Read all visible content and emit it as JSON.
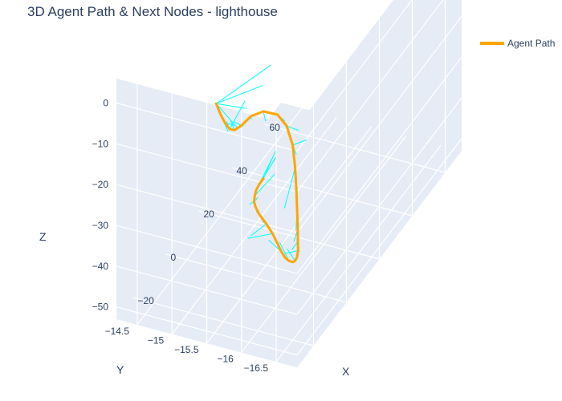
{
  "chart_data": {
    "type": "line3d",
    "title": "3D Agent Path & Next Nodes - lighthouse",
    "legend": {
      "entries": [
        "Agent Path"
      ],
      "position": "top-right"
    },
    "colors": {
      "path": "#ffa500",
      "next_nodes": "#00ffff",
      "pane": "#e5ecf6",
      "grid": "#ffffff",
      "text": "#2a3f5f"
    },
    "axes": {
      "x": {
        "title": "X",
        "ticks": [
          "−20",
          "0",
          "20",
          "40",
          "60"
        ],
        "tick_values": [
          -20,
          0,
          20,
          40,
          60
        ],
        "range": [
          -30,
          70
        ]
      },
      "y": {
        "title": "Y",
        "ticks": [
          "−16.5",
          "−16",
          "−15.5",
          "−15",
          "−14.5"
        ],
        "tick_values": [
          -16.5,
          -16,
          -15.5,
          -15,
          -14.5
        ],
        "range": [
          -16.8,
          -14.2
        ]
      },
      "z": {
        "title": "Z",
        "ticks": [
          "−50",
          "−40",
          "−30",
          "−20",
          "−10",
          "0"
        ],
        "tick_values": [
          -50,
          -40,
          -30,
          -20,
          -10,
          0
        ],
        "range": [
          -53,
          6
        ]
      }
    },
    "series": [
      {
        "name": "Agent Path",
        "x": [
          -20,
          -21.5,
          -23,
          -24.5,
          -25.8,
          -26.6,
          -26.8,
          -26,
          -25,
          -24.5,
          -24.2,
          -24,
          -23.2,
          -21.5,
          -19,
          -16,
          -12.5,
          -9,
          -5,
          -1,
          3,
          7,
          11,
          15,
          18.5,
          21,
          23,
          25,
          27,
          30,
          33,
          36,
          39
        ],
        "y": [
          -15.4,
          -15.5,
          -15.6,
          -15.7,
          -15.8,
          -15.92,
          -16.06,
          -16.22,
          -16.4,
          -16.52,
          -16.6,
          -16.63,
          -16.63,
          -16.6,
          -16.55,
          -16.48,
          -16.4,
          -16.3,
          -16.18,
          -16.05,
          -15.9,
          -15.75,
          -15.6,
          -15.45,
          -15.3,
          -15.15,
          -15,
          -14.9,
          -14.83,
          -14.77,
          -14.72,
          -14.69,
          -14.68
        ],
        "z": [
          0,
          -1.5,
          -2.3,
          -2.5,
          -1.6,
          0.5,
          3.5,
          5,
          4.5,
          2,
          -2.5,
          -8,
          -14,
          -20,
          -26,
          -31,
          -35.5,
          -39.5,
          -43,
          -46,
          -48.5,
          -50.5,
          -51.8,
          -52.6,
          -52.8,
          -52.4,
          -51.8,
          -51.5,
          -51.6,
          -52,
          -52.4,
          -52.8,
          -53
        ]
      }
    ],
    "next_nodes": {
      "name": "Next Nodes",
      "segments_from_path_index": [
        0,
        0,
        0,
        0,
        1,
        2,
        3,
        3,
        4,
        5,
        6,
        7,
        8,
        9,
        10,
        10,
        11,
        11,
        12,
        13,
        14,
        15,
        16,
        18,
        20,
        22,
        24,
        25,
        26,
        27,
        28,
        28,
        29,
        30,
        31,
        32
      ],
      "x": [
        -12,
        -13,
        -14,
        -16,
        -17,
        -17,
        -18,
        6,
        -20,
        -22,
        -24,
        -28,
        -29,
        -25,
        -20,
        -22,
        -23,
        -25,
        -21,
        -18,
        -15,
        -12,
        -8,
        2,
        10,
        16,
        16,
        22,
        30,
        30,
        34,
        39,
        45,
        48,
        50,
        54
      ],
      "y": [
        -16,
        -15.9,
        -15.7,
        -15.6,
        -15.5,
        -15.6,
        -15.5,
        -15.2,
        -15.6,
        -15.7,
        -16,
        -16.3,
        -16.6,
        -16.7,
        -16.7,
        -16.6,
        -16.6,
        -16.5,
        -16.6,
        -16.5,
        -16.4,
        -16.3,
        -16.1,
        -15.9,
        -15.6,
        -15.3,
        -15,
        -14.9,
        -14.9,
        -14.8,
        -14.6,
        -14.6,
        -14.7,
        -14.6,
        -14.6,
        -14.5
      ],
      "z": [
        8,
        3,
        -3,
        -7,
        -8,
        -6,
        -5,
        -14,
        -3,
        -2,
        1,
        4,
        6,
        2,
        -3,
        -6,
        -10,
        -18,
        -22,
        -27,
        -32,
        -36,
        -40,
        -45,
        -49,
        -53,
        -54,
        -57,
        -58,
        -56,
        -57,
        -58,
        -55,
        -53,
        -54,
        -55
      ]
    }
  }
}
